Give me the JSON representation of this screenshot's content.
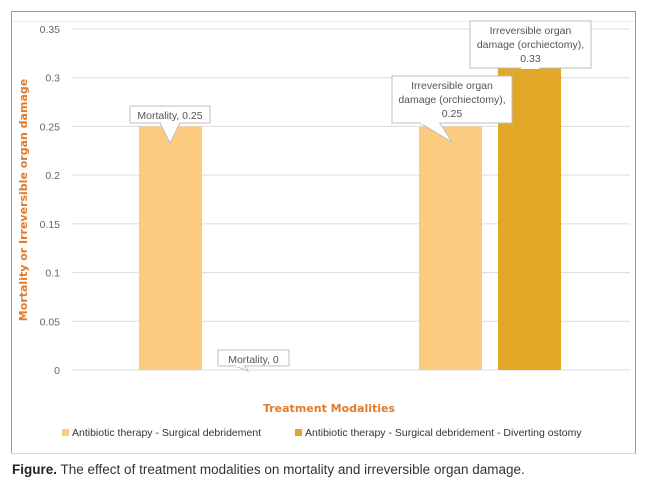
{
  "chart_data": {
    "type": "bar",
    "title": "",
    "xlabel": "Treatment Modalities",
    "ylabel": "Mortality or Irreversible organ damage",
    "ylim": [
      0,
      0.35
    ],
    "yticks": [
      0,
      0.05,
      0.1,
      0.15,
      0.2,
      0.25,
      0.3,
      0.35
    ],
    "ytick_labels": [
      "0",
      "0.05",
      "0.1",
      "0.15",
      "0.2",
      "0.25",
      "0.3",
      "0.35"
    ],
    "grid": true,
    "legend_position": "bottom",
    "categories": [
      "Mortality",
      "Irreversible organ damage (orchiectomy)"
    ],
    "series": [
      {
        "name": "Antibiotic therapy - Surgical debridement",
        "color": "#fbcb80",
        "values": [
          0.25,
          0.25
        ],
        "data_labels": [
          "Mortality, 0.25",
          "Irreversible organ damage (orchiectomy), 0.25"
        ]
      },
      {
        "name": "Antibiotic therapy - Surgical debridement - Diverting ostomy",
        "color": "#e0a826",
        "values": [
          0,
          0.33
        ],
        "data_labels": [
          "Mortality, 0",
          "Irreversible organ damage (orchiectomy), 0.33"
        ]
      }
    ]
  },
  "caption": {
    "label": "Figure.",
    "text": " The effect of treatment modalities on mortality and irreversible organ damage."
  }
}
